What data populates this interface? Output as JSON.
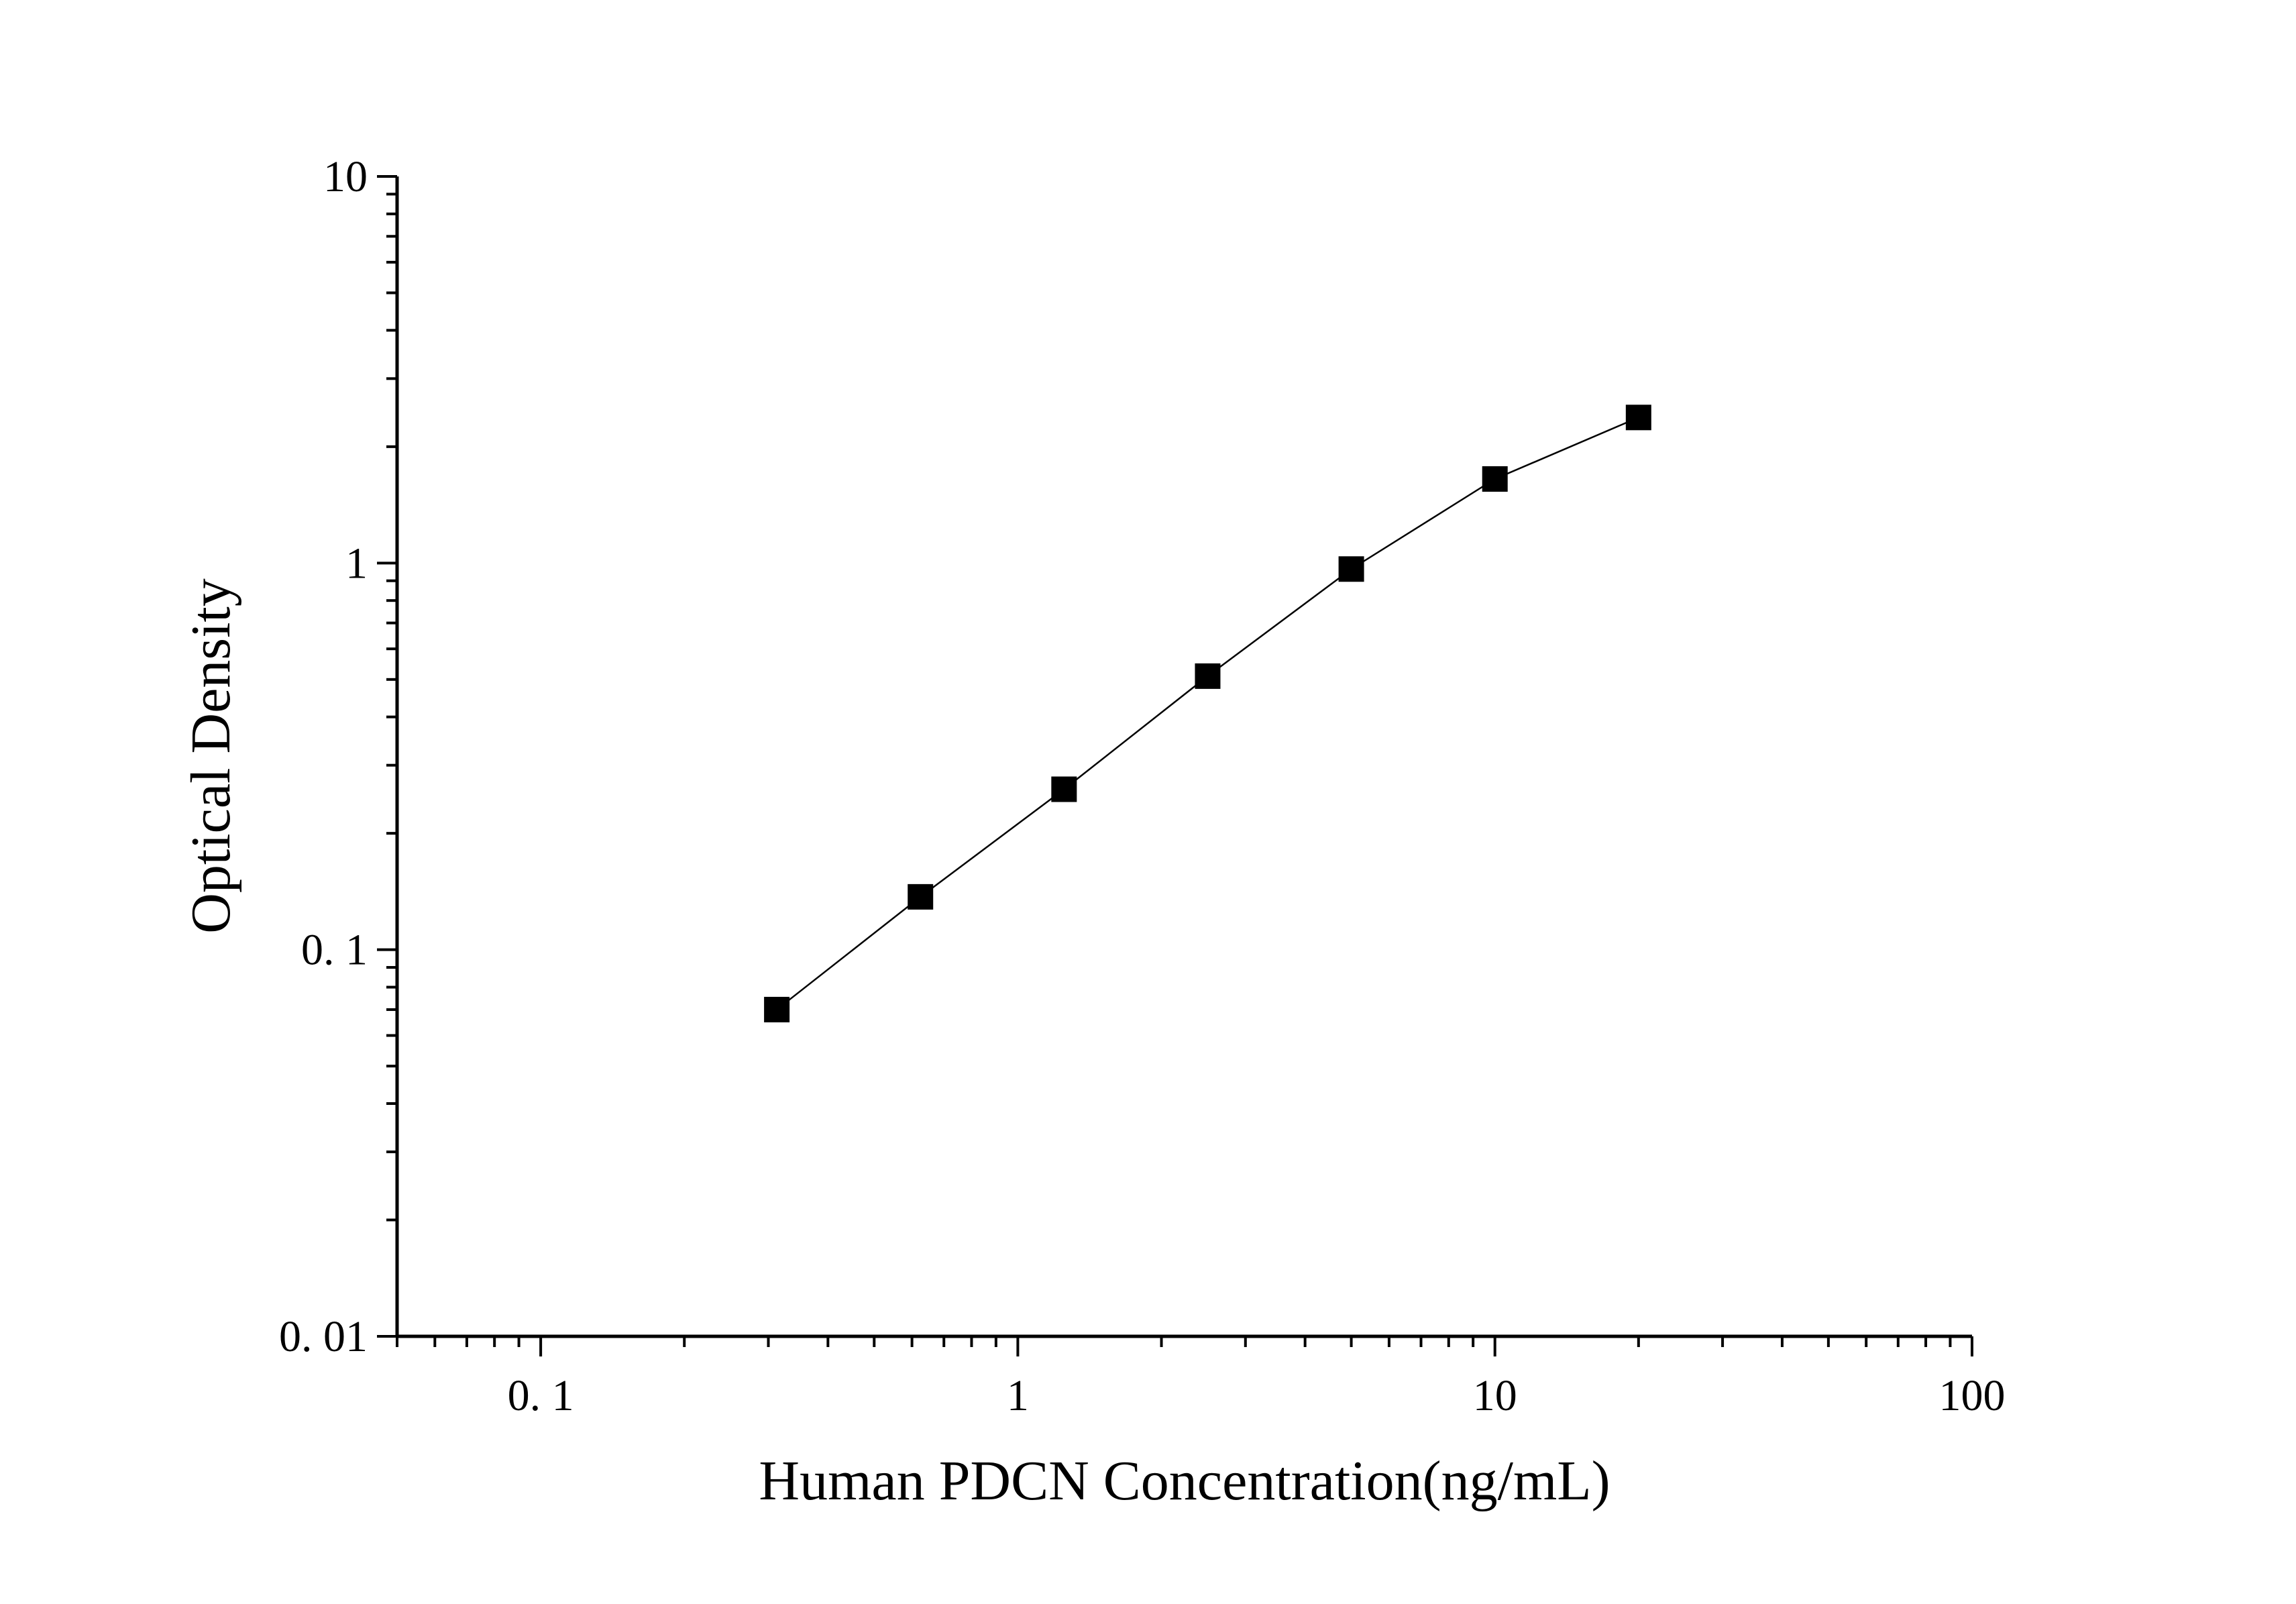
{
  "chart_data": {
    "type": "line",
    "xlabel": "Human PDCN Concentration(ng/mL)",
    "ylabel": "Optical Density",
    "x_scale": "log",
    "y_scale": "log",
    "xlim": [
      0.05,
      100
    ],
    "ylim": [
      0.01,
      10
    ],
    "x_ticks": [
      {
        "value": 0.1,
        "label": "0. 1"
      },
      {
        "value": 1,
        "label": "1"
      },
      {
        "value": 10,
        "label": "10"
      },
      {
        "value": 100,
        "label": "100"
      }
    ],
    "y_ticks": [
      {
        "value": 0.01,
        "label": "0. 01"
      },
      {
        "value": 0.1,
        "label": "0. 1"
      },
      {
        "value": 1,
        "label": "1"
      },
      {
        "value": 10,
        "label": "10"
      }
    ],
    "grid": false,
    "marker": "square",
    "color": "#000000",
    "series": [
      {
        "x": [
          0.3125,
          0.625,
          1.25,
          2.5,
          5,
          10,
          20
        ],
        "y": [
          0.07,
          0.137,
          0.26,
          0.51,
          0.965,
          1.65,
          2.38
        ]
      }
    ]
  }
}
